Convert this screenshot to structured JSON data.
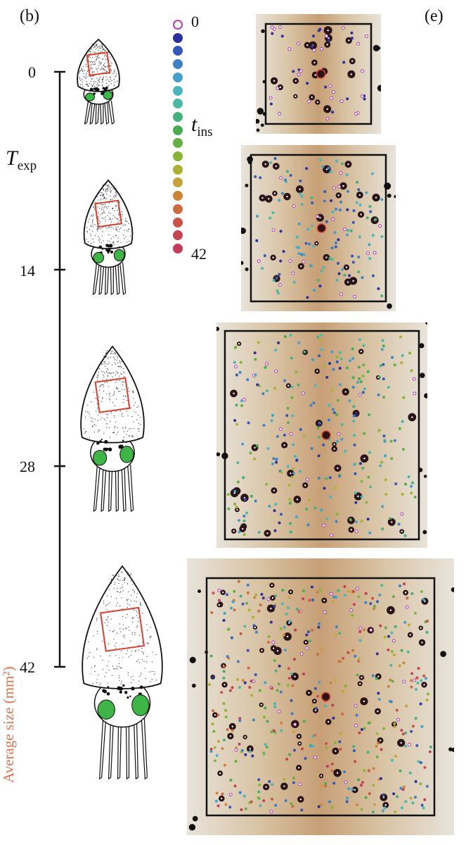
{
  "panel_labels": {
    "left": "(b)",
    "right": "(e)"
  },
  "time_axis": {
    "title_main": "T",
    "title_sub": "exp",
    "ticks": [
      "0",
      "14",
      "28",
      "42"
    ]
  },
  "color_scale": {
    "title_main": "t",
    "title_sub": "ins",
    "min_label": "0",
    "max_label": "42",
    "colors": [
      "#ffffff",
      "#2b2f9e",
      "#3657b8",
      "#3f7fc4",
      "#44a0c8",
      "#4cb4bc",
      "#4bb8a4",
      "#44b07c",
      "#48ab52",
      "#62b042",
      "#86b438",
      "#a9b236",
      "#c5a23a",
      "#cc8438",
      "#cc6a40",
      "#c85448",
      "#c44450",
      "#c23c5a"
    ],
    "first_marker_outline": "#b03cb0"
  },
  "side_label": "Average size (mm²)",
  "colors": {
    "highlight_square": "#d8412f",
    "eye": "#3fb548",
    "frame": "#111111"
  },
  "stages": [
    {
      "name": "stage-0",
      "tick": "0"
    },
    {
      "name": "stage-14",
      "tick": "14"
    },
    {
      "name": "stage-28",
      "tick": "28"
    },
    {
      "name": "stage-42",
      "tick": "42"
    }
  ]
}
